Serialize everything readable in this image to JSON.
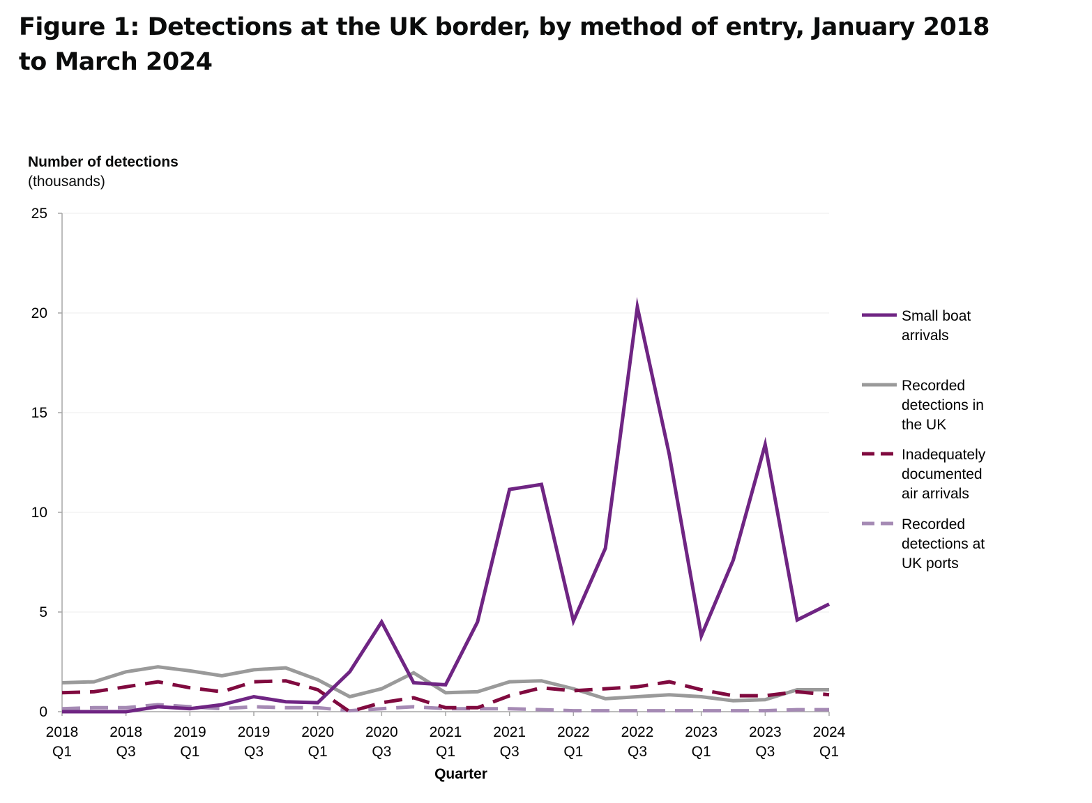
{
  "figure_title": "Figure 1: Detections at the UK border, by method of entry, January 2018 to March 2024",
  "chart_data": {
    "type": "line",
    "title": "Figure 1: Detections at the UK border, by method of entry, January 2018 to March 2024",
    "ylabel_line1": "Number of detections",
    "ylabel_line2": "(thousands)",
    "xlabel": "Quarter",
    "ylim": [
      0,
      25
    ],
    "yticks": [
      "0",
      "5",
      "10",
      "15",
      "20",
      "25"
    ],
    "grid": "horizontal",
    "legend_position": "right",
    "x": [
      "2018 Q1",
      "2018 Q2",
      "2018 Q3",
      "2018 Q4",
      "2019 Q1",
      "2019 Q2",
      "2019 Q3",
      "2019 Q4",
      "2020 Q1",
      "2020 Q2",
      "2020 Q3",
      "2020 Q4",
      "2021 Q1",
      "2021 Q2",
      "2021 Q3",
      "2021 Q4",
      "2022 Q1",
      "2022 Q2",
      "2022 Q3",
      "2022 Q4",
      "2023 Q1",
      "2023 Q2",
      "2023 Q3",
      "2023 Q4",
      "2024 Q1"
    ],
    "xticks": [
      {
        "year": "2018",
        "quarter": "Q1"
      },
      {
        "year": "2018",
        "quarter": "Q3"
      },
      {
        "year": "2019",
        "quarter": "Q1"
      },
      {
        "year": "2019",
        "quarter": "Q3"
      },
      {
        "year": "2020",
        "quarter": "Q1"
      },
      {
        "year": "2020",
        "quarter": "Q3"
      },
      {
        "year": "2021",
        "quarter": "Q1"
      },
      {
        "year": "2021",
        "quarter": "Q3"
      },
      {
        "year": "2022",
        "quarter": "Q1"
      },
      {
        "year": "2022",
        "quarter": "Q3"
      },
      {
        "year": "2023",
        "quarter": "Q1"
      },
      {
        "year": "2023",
        "quarter": "Q3"
      },
      {
        "year": "2024",
        "quarter": "Q1"
      }
    ],
    "series": [
      {
        "name": "Small boat arrivals",
        "legend_lines": [
          "Small boat",
          "arrivals"
        ],
        "color": "#6f2583",
        "style": "solid",
        "values": [
          0.0,
          0.0,
          0.0,
          0.25,
          0.15,
          0.35,
          0.75,
          0.5,
          0.45,
          2.0,
          4.5,
          1.45,
          1.35,
          4.5,
          11.15,
          11.4,
          4.55,
          8.2,
          20.3,
          12.9,
          3.8,
          7.6,
          13.4,
          4.6,
          5.4
        ]
      },
      {
        "name": "Recorded detections in the UK",
        "legend_lines": [
          "Recorded",
          "detections in",
          "the UK"
        ],
        "color": "#9a9a9a",
        "style": "solid",
        "values": [
          1.45,
          1.5,
          2.0,
          2.25,
          2.05,
          1.8,
          2.1,
          2.2,
          1.6,
          0.75,
          1.15,
          1.95,
          0.95,
          1.0,
          1.5,
          1.55,
          1.15,
          0.65,
          0.75,
          0.85,
          0.75,
          0.55,
          0.6,
          1.1,
          1.1
        ]
      },
      {
        "name": "Inadequately documented air arrivals",
        "legend_lines": [
          "Inadequately",
          "documented",
          "air arrivals"
        ],
        "color": "#800a3f",
        "style": "dashed",
        "values": [
          0.95,
          1.0,
          1.25,
          1.5,
          1.2,
          1.0,
          1.5,
          1.55,
          1.1,
          0.0,
          0.45,
          0.7,
          0.2,
          0.2,
          0.8,
          1.2,
          1.05,
          1.15,
          1.25,
          1.5,
          1.1,
          0.8,
          0.8,
          1.0,
          0.85
        ]
      },
      {
        "name": "Recorded detections at UK ports",
        "legend_lines": [
          "Recorded",
          "detections at",
          "UK ports"
        ],
        "color": "#a58ab4",
        "style": "dashed",
        "values": [
          0.15,
          0.2,
          0.2,
          0.35,
          0.25,
          0.15,
          0.25,
          0.2,
          0.2,
          0.05,
          0.15,
          0.25,
          0.15,
          0.15,
          0.15,
          0.1,
          0.05,
          0.05,
          0.05,
          0.05,
          0.05,
          0.05,
          0.05,
          0.1,
          0.1
        ]
      }
    ]
  }
}
